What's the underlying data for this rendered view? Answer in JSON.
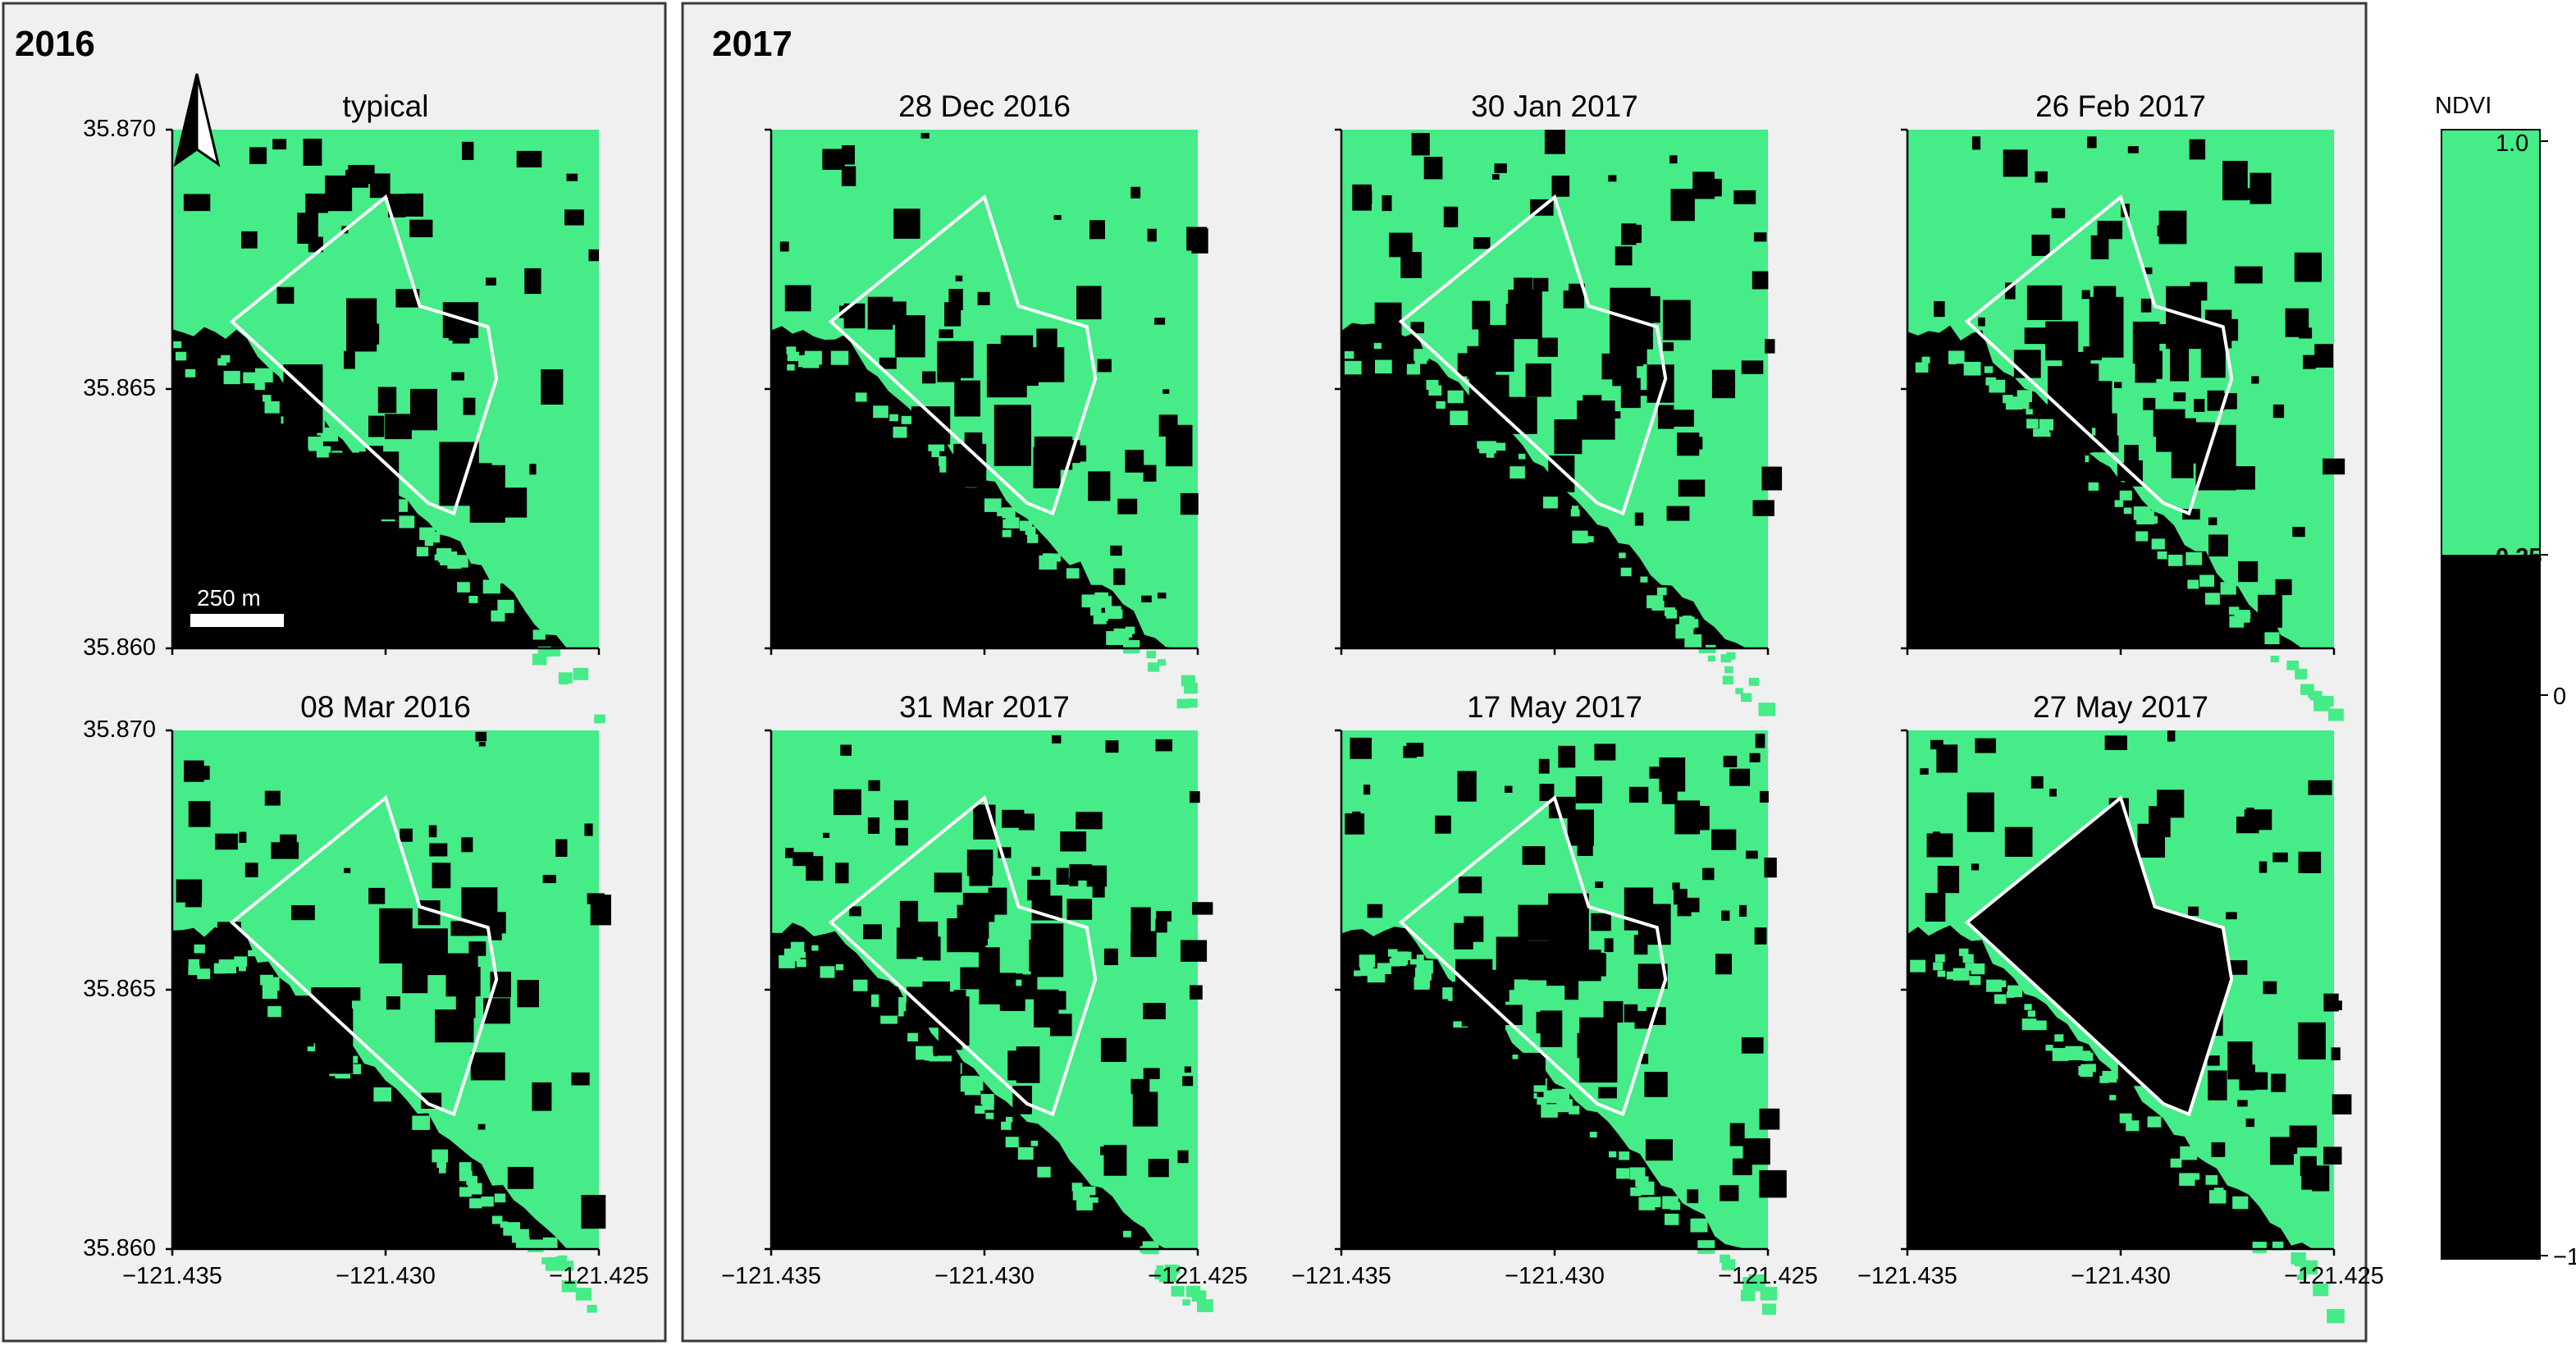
{
  "groups": [
    {
      "id": "g2016",
      "title": "2016"
    },
    {
      "id": "g2017",
      "title": "2017"
    }
  ],
  "panels": [
    {
      "id": "p-typical",
      "title": "typical",
      "group": "g2016",
      "variant": 1
    },
    {
      "id": "p-08mar2016",
      "title": "08 Mar 2016",
      "group": "g2016",
      "variant": 2
    },
    {
      "id": "p-28dec2016",
      "title": "28  Dec 2016",
      "group": "g2017",
      "variant": 3
    },
    {
      "id": "p-30jan2017",
      "title": "30  Jan 2017",
      "group": "g2017",
      "variant": 4
    },
    {
      "id": "p-26feb2017",
      "title": "26  Feb 2017",
      "group": "g2017",
      "variant": 5
    },
    {
      "id": "p-31mar2017",
      "title": "31  Mar 2017",
      "group": "g2017",
      "variant": 6
    },
    {
      "id": "p-17may2017",
      "title": "17  May 2017",
      "group": "g2017",
      "variant": 7
    },
    {
      "id": "p-27may2017",
      "title": "27  May 2017",
      "group": "g2017",
      "variant": 8
    }
  ],
  "axes": {
    "lon_ticks": [
      "−121.435",
      "−121.430",
      "−121.425"
    ],
    "lat_ticks": [
      "35.870",
      "35.865",
      "35.860"
    ],
    "lon_range": [
      -121.435,
      -121.425
    ],
    "lat_range": [
      35.86,
      35.87
    ]
  },
  "scale_bar": {
    "label": "250 m"
  },
  "north_arrow": {
    "icon": "north-arrow-icon"
  },
  "colorbar": {
    "title": "NDVI",
    "ticks": [
      {
        "label": "1.0",
        "value": 1.0,
        "bold": false
      },
      {
        "label": "0.25",
        "value": 0.25,
        "bold": true
      },
      {
        "label": "0",
        "value": 0,
        "bold": false
      },
      {
        "label": "−1",
        "value": -1,
        "bold": false
      }
    ],
    "classes": [
      {
        "range": [
          0.25,
          1.0
        ],
        "color": "#45ec88"
      },
      {
        "range": [
          -1,
          0.25
        ],
        "color": "#000000"
      }
    ]
  },
  "colors": {
    "vegetation": "#45ec88",
    "non_vegetation": "#000000",
    "outline": "#ffffff",
    "panel_background": "#f0f0f0"
  }
}
